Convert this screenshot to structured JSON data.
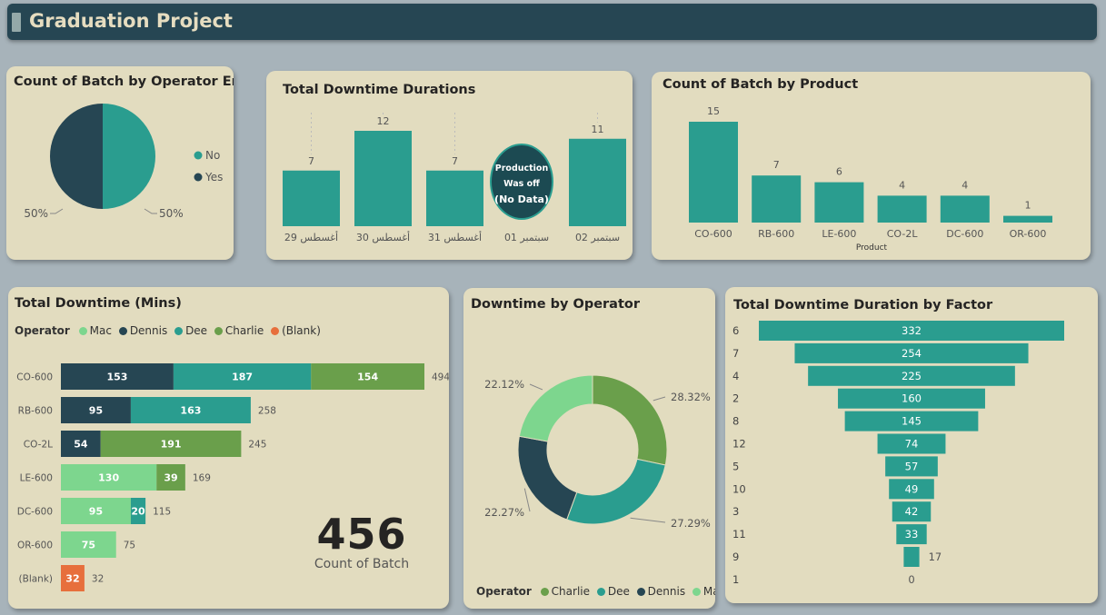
{
  "header": {
    "title": "Graduation Project"
  },
  "colors": {
    "teal": "#2a9d8f",
    "navy": "#264653",
    "green": "#6a9f4b",
    "light_green": "#7dd68e",
    "orange": "#e76f3c"
  },
  "chart_data": [
    {
      "id": "operator_error_pie",
      "type": "pie",
      "title": "Count of Batch by Operator Error",
      "legend": [
        "No",
        "Yes"
      ],
      "slices": [
        {
          "name": "No",
          "value": 50,
          "label": "50%",
          "color": "#2a9d8f"
        },
        {
          "name": "Yes",
          "value": 50,
          "label": "50%",
          "color": "#264653"
        }
      ]
    },
    {
      "id": "total_downtime_durations",
      "type": "bar",
      "title": "Total Downtime Durations",
      "categories": [
        "أغسطس 29",
        "أغسطس 30",
        "أغسطس 31",
        "سبتمبر 01",
        "سبتمبر 02"
      ],
      "values": [
        7,
        12,
        7,
        null,
        11
      ],
      "ylim": [
        0,
        12
      ],
      "annotation": {
        "line1": "Production",
        "line2": "Was off",
        "line3": "(No Data)"
      }
    },
    {
      "id": "batch_by_product",
      "type": "bar",
      "title": "Count of Batch by Product",
      "xlabel": "Product",
      "categories": [
        "CO-600",
        "RB-600",
        "LE-600",
        "CO-2L",
        "DC-600",
        "OR-600"
      ],
      "values": [
        15,
        7,
        6,
        4,
        4,
        1
      ],
      "ylim": [
        0,
        15
      ]
    },
    {
      "id": "total_downtime_mins",
      "type": "bar",
      "orientation": "horizontal",
      "stacked": true,
      "title": "Total Downtime (Mins)",
      "legend_title": "Operator",
      "legend": [
        {
          "name": "Mac",
          "color": "#7dd68e"
        },
        {
          "name": "Dennis",
          "color": "#264653"
        },
        {
          "name": "Dee",
          "color": "#2a9d8f"
        },
        {
          "name": "Charlie",
          "color": "#6a9f4b"
        },
        {
          "name": "(Blank)",
          "color": "#e76f3c"
        }
      ],
      "categories": [
        "CO-600",
        "RB-600",
        "CO-2L",
        "LE-600",
        "DC-600",
        "OR-600",
        "(Blank)"
      ],
      "rows": [
        {
          "segments": [
            {
              "series": "Dennis",
              "value": 153
            },
            {
              "series": "Dee",
              "value": 187
            },
            {
              "series": "Charlie",
              "value": 154
            }
          ],
          "total": 494
        },
        {
          "segments": [
            {
              "series": "Dennis",
              "value": 95
            },
            {
              "series": "Dee",
              "value": 163
            }
          ],
          "total": 258
        },
        {
          "segments": [
            {
              "series": "Dennis",
              "value": 54
            },
            {
              "series": "Charlie",
              "value": 191
            }
          ],
          "total": 245
        },
        {
          "segments": [
            {
              "series": "Mac",
              "value": 130
            },
            {
              "series": "Charlie",
              "value": 39
            }
          ],
          "total": 169
        },
        {
          "segments": [
            {
              "series": "Mac",
              "value": 95
            },
            {
              "series": "Dee",
              "value": 20
            }
          ],
          "total": 115
        },
        {
          "segments": [
            {
              "series": "Mac",
              "value": 75
            }
          ],
          "total": 75
        },
        {
          "segments": [
            {
              "series": "(Blank)",
              "value": 32
            }
          ],
          "total": 32
        }
      ],
      "xlim": [
        0,
        494
      ]
    },
    {
      "id": "downtime_by_operator",
      "type": "pie",
      "donut": true,
      "title": "Downtime by Operator",
      "legend_title": "Operator",
      "legend": [
        {
          "name": "Charlie",
          "color": "#6a9f4b"
        },
        {
          "name": "Dee",
          "color": "#2a9d8f"
        },
        {
          "name": "Dennis",
          "color": "#264653"
        },
        {
          "name": "Mac",
          "color": "#7dd68e"
        }
      ],
      "slices": [
        {
          "name": "Charlie",
          "value": 28.32,
          "label": "28.32%",
          "color": "#6a9f4b"
        },
        {
          "name": "Dee",
          "value": 27.29,
          "label": "27.29%",
          "color": "#2a9d8f"
        },
        {
          "name": "Dennis",
          "value": 22.27,
          "label": "22.27%",
          "color": "#264653"
        },
        {
          "name": "Mac",
          "value": 22.12,
          "label": "22.12%",
          "color": "#7dd68e"
        }
      ]
    },
    {
      "id": "downtime_by_factor",
      "type": "bar",
      "subtype": "funnel",
      "title": "Total Downtime Duration by Factor",
      "categories": [
        "6",
        "7",
        "4",
        "2",
        "8",
        "12",
        "5",
        "10",
        "3",
        "11",
        "9",
        "1"
      ],
      "values": [
        332,
        254,
        225,
        160,
        145,
        74,
        57,
        49,
        42,
        33,
        17,
        0
      ],
      "xlim": [
        0,
        332
      ]
    }
  ],
  "kpi": {
    "value": "456",
    "label": "Count of Batch"
  }
}
